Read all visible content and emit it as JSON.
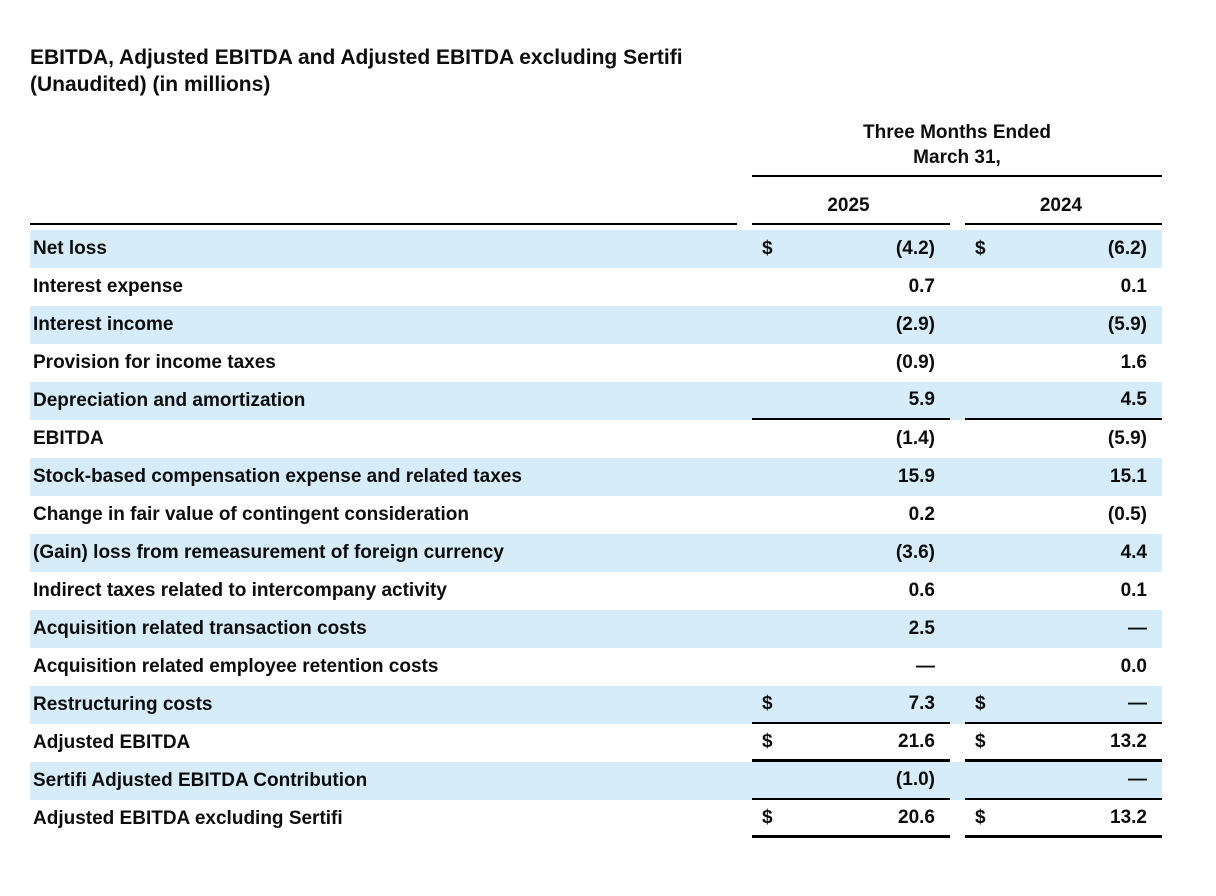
{
  "title": {
    "line1": "EBITDA, Adjusted EBITDA and Adjusted EBITDA excluding Sertifi",
    "line2": "(Unaudited) (in millions)"
  },
  "table": {
    "period_header": {
      "line1": "Three Months Ended",
      "line2": "March 31,"
    },
    "columns": {
      "col1": "2025",
      "col2": "2024"
    },
    "rows": [
      {
        "label": "Net loss",
        "d1": "$",
        "v1": "(4.2)",
        "d2": "$",
        "v2": "(6.2)"
      },
      {
        "label": "Interest expense",
        "v1": "0.7",
        "v2": "0.1"
      },
      {
        "label": "Interest income",
        "v1": "(2.9)",
        "v2": "(5.9)"
      },
      {
        "label": "Provision for income taxes",
        "v1": "(0.9)",
        "v2": "1.6"
      },
      {
        "label": "Depreciation and amortization",
        "v1": "5.9",
        "v2": "4.5"
      },
      {
        "label": "EBITDA",
        "v1": "(1.4)",
        "v2": "(5.9)"
      },
      {
        "label": "Stock-based compensation expense and related taxes",
        "v1": "15.9",
        "v2": "15.1"
      },
      {
        "label": "Change in fair value of contingent consideration",
        "v1": "0.2",
        "v2": "(0.5)"
      },
      {
        "label": "(Gain) loss from remeasurement of foreign currency",
        "v1": "(3.6)",
        "v2": "4.4"
      },
      {
        "label": "Indirect taxes related to intercompany activity",
        "v1": "0.6",
        "v2": "0.1"
      },
      {
        "label": "Acquisition related transaction costs",
        "v1": "2.5",
        "v2": "—"
      },
      {
        "label": "Acquisition related employee retention costs",
        "v1": "—",
        "v2": "0.0"
      },
      {
        "label": "Restructuring costs",
        "d1": "$",
        "v1": "7.3",
        "d2": "$",
        "v2": "—"
      },
      {
        "label": "Adjusted EBITDA",
        "d1": "$",
        "v1": "21.6",
        "d2": "$",
        "v2": "13.2"
      },
      {
        "label": "Sertifi Adjusted EBITDA Contribution",
        "v1": "(1.0)",
        "v2": "—"
      },
      {
        "label": "Adjusted EBITDA excluding Sertifi",
        "d1": "$",
        "v1": "20.6",
        "d2": "$",
        "v2": "13.2"
      }
    ]
  },
  "colors": {
    "row_highlight": "#d6ecf9",
    "rule": "#000000",
    "text": "#0d0d0d",
    "background": "#ffffff"
  }
}
